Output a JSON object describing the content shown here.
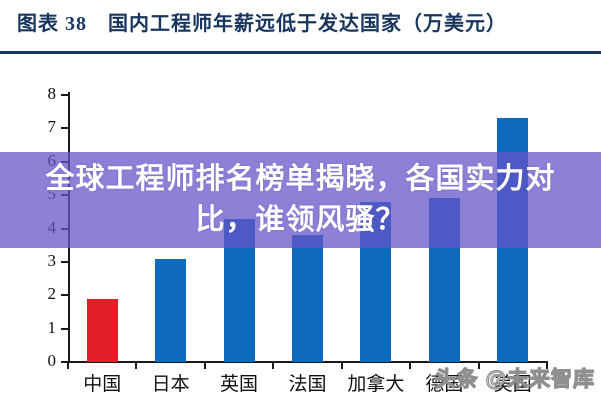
{
  "header": {
    "title": "图表 38　国内工程师年薪远低于发达国家（万美元）"
  },
  "overlay": {
    "headline": "全球工程师排名榜单揭晓，各国实力对比，谁领风骚？"
  },
  "watermark": {
    "text": "头条 @未来智库"
  },
  "colors": {
    "title_navy": "#17355e",
    "bar_blue": "#0e6abd",
    "bar_red": "#e21e26",
    "banner_purple": "rgba(100,85,200,0.74)",
    "axis_black": "#1a1a1a"
  },
  "chart_data": {
    "type": "bar",
    "title": "国内工程师年薪远低于发达国家（万美元）",
    "categories": [
      "中国",
      "日本",
      "英国",
      "法国",
      "加拿大",
      "德国",
      "美国"
    ],
    "values": [
      1.9,
      3.1,
      4.3,
      3.8,
      4.8,
      4.9,
      7.3
    ],
    "bar_colors": [
      "#e21e26",
      "#0e6abd",
      "#0e6abd",
      "#0e6abd",
      "#0e6abd",
      "#0e6abd",
      "#0e6abd"
    ],
    "xlabel": "",
    "ylabel": "",
    "ylim": [
      0,
      8
    ],
    "yticks": [
      0,
      1,
      2,
      3,
      4,
      5,
      6,
      7,
      8
    ],
    "grid": false,
    "legend": false,
    "unit": "万美元"
  }
}
